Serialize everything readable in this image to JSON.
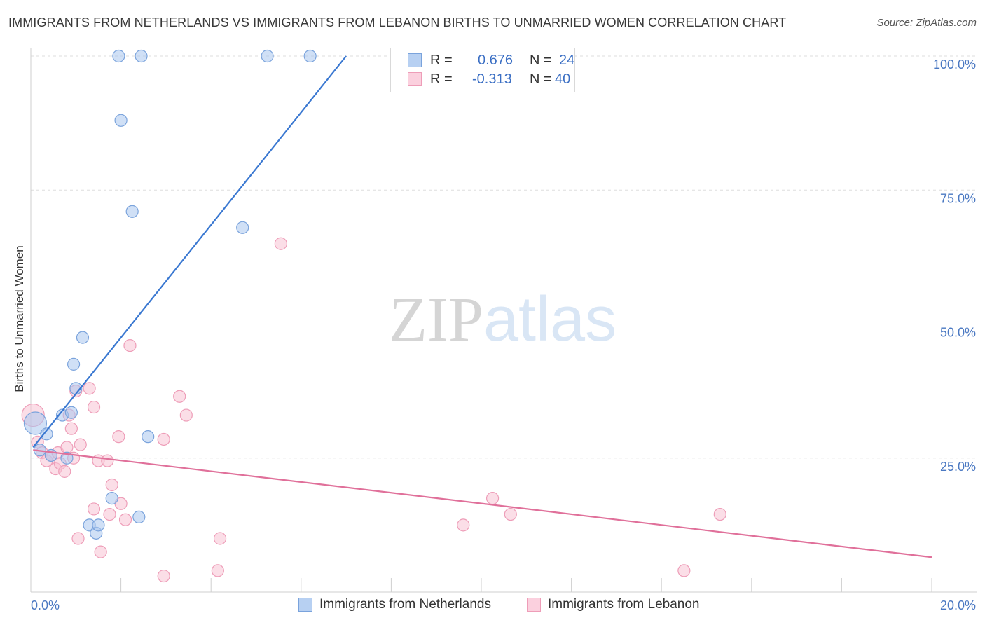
{
  "chart_data": {
    "type": "scatter",
    "title": "IMMIGRANTS FROM NETHERLANDS VS IMMIGRANTS FROM LEBANON BIRTHS TO UNMARRIED WOMEN CORRELATION CHART",
    "source": "Source: ZipAtlas.com",
    "ylabel": "Births to Unmarried Women",
    "xlabel": "",
    "xlim": [
      0,
      20
    ],
    "ylim": [
      0,
      104
    ],
    "x_tick_labels": {
      "min": "0.0%",
      "max": "20.0%"
    },
    "y_ticks": [
      {
        "value": 25,
        "label": "25.0%"
      },
      {
        "value": 50,
        "label": "50.0%"
      },
      {
        "value": 75,
        "label": "75.0%"
      },
      {
        "value": 100,
        "label": "100.0%"
      }
    ],
    "watermark": {
      "part1": "ZIP",
      "part2": "atlas"
    },
    "series": [
      {
        "name": "Immigrants from Netherlands",
        "color": "#a9c6ee",
        "edge": "#7aa3dc",
        "line_color": "#3a78d1",
        "R": "0.676",
        "N": "24",
        "trend": {
          "x0": 0.05,
          "y0": 27,
          "x1": 7.0,
          "y1": 100
        },
        "points": [
          {
            "x": 0.1,
            "y": 31.5,
            "big": true
          },
          {
            "x": 0.2,
            "y": 26.5
          },
          {
            "x": 0.35,
            "y": 29.5
          },
          {
            "x": 0.45,
            "y": 25.5
          },
          {
            "x": 0.7,
            "y": 33
          },
          {
            "x": 0.8,
            "y": 25
          },
          {
            "x": 0.9,
            "y": 33.5
          },
          {
            "x": 0.95,
            "y": 42.5
          },
          {
            "x": 1.0,
            "y": 38
          },
          {
            "x": 1.15,
            "y": 47.5
          },
          {
            "x": 1.3,
            "y": 12.5
          },
          {
            "x": 1.45,
            "y": 11
          },
          {
            "x": 1.5,
            "y": 12.5
          },
          {
            "x": 1.8,
            "y": 17.5
          },
          {
            "x": 1.95,
            "y": 100
          },
          {
            "x": 2.0,
            "y": 88
          },
          {
            "x": 2.25,
            "y": 71
          },
          {
            "x": 2.4,
            "y": 14
          },
          {
            "x": 2.45,
            "y": 100
          },
          {
            "x": 2.6,
            "y": 29
          },
          {
            "x": 4.7,
            "y": 68
          },
          {
            "x": 5.25,
            "y": 100
          },
          {
            "x": 6.2,
            "y": 100
          },
          {
            "x": 8.75,
            "y": 100
          }
        ]
      },
      {
        "name": "Immigrants from Lebanon",
        "color": "#f8c3d4",
        "edge": "#ee9db8",
        "line_color": "#e0709a",
        "R": "-0.313",
        "N": "40",
        "trend": {
          "x0": 0.05,
          "y0": 26.5,
          "x1": 20.0,
          "y1": 6.5
        },
        "points": [
          {
            "x": 0.05,
            "y": 33,
            "big": true
          },
          {
            "x": 0.15,
            "y": 28
          },
          {
            "x": 0.25,
            "y": 26
          },
          {
            "x": 0.35,
            "y": 24.5
          },
          {
            "x": 0.45,
            "y": 25.5
          },
          {
            "x": 0.55,
            "y": 23
          },
          {
            "x": 0.6,
            "y": 26
          },
          {
            "x": 0.65,
            "y": 24
          },
          {
            "x": 0.75,
            "y": 22.5
          },
          {
            "x": 0.8,
            "y": 27
          },
          {
            "x": 0.85,
            "y": 33
          },
          {
            "x": 0.9,
            "y": 30.5
          },
          {
            "x": 0.95,
            "y": 25
          },
          {
            "x": 1.0,
            "y": 37.5
          },
          {
            "x": 1.05,
            "y": 10
          },
          {
            "x": 1.1,
            "y": 27.5
          },
          {
            "x": 1.3,
            "y": 38
          },
          {
            "x": 1.4,
            "y": 15.5
          },
          {
            "x": 1.4,
            "y": 34.5
          },
          {
            "x": 1.5,
            "y": 24.5
          },
          {
            "x": 1.55,
            "y": 7.5
          },
          {
            "x": 1.7,
            "y": 24.5
          },
          {
            "x": 1.75,
            "y": 14.5
          },
          {
            "x": 1.8,
            "y": 20
          },
          {
            "x": 1.95,
            "y": 29
          },
          {
            "x": 2.0,
            "y": 16.5
          },
          {
            "x": 2.1,
            "y": 13.5
          },
          {
            "x": 2.2,
            "y": 46
          },
          {
            "x": 2.95,
            "y": 28.5
          },
          {
            "x": 2.95,
            "y": 3
          },
          {
            "x": 3.3,
            "y": 36.5
          },
          {
            "x": 3.45,
            "y": 33
          },
          {
            "x": 4.15,
            "y": 4
          },
          {
            "x": 4.2,
            "y": 10
          },
          {
            "x": 5.55,
            "y": 65
          },
          {
            "x": 9.6,
            "y": 12.5
          },
          {
            "x": 10.25,
            "y": 17.5
          },
          {
            "x": 10.65,
            "y": 14.5
          },
          {
            "x": 14.5,
            "y": 4
          },
          {
            "x": 15.3,
            "y": 14.5
          }
        ]
      }
    ]
  }
}
